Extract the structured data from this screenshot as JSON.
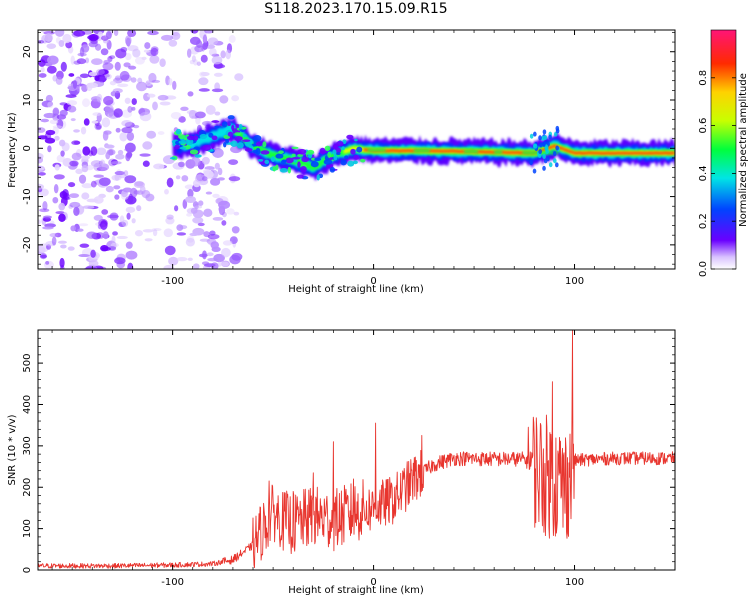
{
  "page": {
    "title": "S118.2023.170.15.09.R15"
  },
  "chart_data": [
    {
      "type": "heatmap",
      "title": "S118.2023.170.15.09.R15",
      "xlabel": "Height of straight line (km)",
      "ylabel": "Frequency (Hz)",
      "xlim": [
        -167,
        150
      ],
      "ylim": [
        -25,
        24.5
      ],
      "x_ticks": [
        -100,
        0,
        100
      ],
      "y_ticks": [
        -20,
        -10,
        0,
        10,
        20
      ],
      "colorbar": {
        "label": "Normalized spectral amplitude",
        "range": [
          0.0,
          1.0
        ],
        "ticks": [
          0.0,
          0.2,
          0.4,
          0.6,
          0.8
        ]
      },
      "ridge_center_hz": [
        {
          "x": -100,
          "y": 0.5
        },
        {
          "x": -90,
          "y": 1.0
        },
        {
          "x": -80,
          "y": 2.5
        },
        {
          "x": -70,
          "y": 4.0
        },
        {
          "x": -60,
          "y": 0.5
        },
        {
          "x": -50,
          "y": -1.5
        },
        {
          "x": -40,
          "y": -2.5
        },
        {
          "x": -30,
          "y": -4.0
        },
        {
          "x": -20,
          "y": -1.5
        },
        {
          "x": -10,
          "y": 0.0
        },
        {
          "x": 0,
          "y": -0.5
        },
        {
          "x": 20,
          "y": -0.5
        },
        {
          "x": 40,
          "y": -0.6
        },
        {
          "x": 60,
          "y": -0.8
        },
        {
          "x": 80,
          "y": -1.0
        },
        {
          "x": 90,
          "y": 0.5
        },
        {
          "x": 100,
          "y": -1.0
        },
        {
          "x": 150,
          "y": -1.0
        }
      ]
    },
    {
      "type": "line",
      "xlabel": "Height of straight line (km)",
      "ylabel": "SNR (10 * v/v)",
      "xlim": [
        -167,
        150
      ],
      "ylim": [
        0,
        580
      ],
      "x_ticks": [
        -100,
        0,
        100
      ],
      "y_ticks": [
        0,
        100,
        200,
        300,
        400,
        500
      ],
      "color": "#e8352e",
      "series": [
        {
          "values": [
            {
              "x": -167,
              "y": 10
            },
            {
              "x": -130,
              "y": 10
            },
            {
              "x": -100,
              "y": 12
            },
            {
              "x": -80,
              "y": 15
            },
            {
              "x": -70,
              "y": 25
            },
            {
              "x": -60,
              "y": 60
            },
            {
              "x": -55,
              "y": 100
            },
            {
              "x": -50,
              "y": 140
            },
            {
              "x": -45,
              "y": 120
            },
            {
              "x": -40,
              "y": 110
            },
            {
              "x": -35,
              "y": 120
            },
            {
              "x": -30,
              "y": 130
            },
            {
              "x": -20,
              "y": 120
            },
            {
              "x": -10,
              "y": 140
            },
            {
              "x": 0,
              "y": 150
            },
            {
              "x": 10,
              "y": 170
            },
            {
              "x": 20,
              "y": 220
            },
            {
              "x": 30,
              "y": 255
            },
            {
              "x": 40,
              "y": 270
            },
            {
              "x": 60,
              "y": 268
            },
            {
              "x": 75,
              "y": 268
            },
            {
              "x": 80,
              "y": 250
            },
            {
              "x": 85,
              "y": 230
            },
            {
              "x": 90,
              "y": 220
            },
            {
              "x": 95,
              "y": 200
            },
            {
              "x": 100,
              "y": 265
            },
            {
              "x": 120,
              "y": 270
            },
            {
              "x": 150,
              "y": 270
            }
          ],
          "spikes": [
            {
              "x": -52,
              "y": 215
            },
            {
              "x": -40,
              "y": 190
            },
            {
              "x": -30,
              "y": 235
            },
            {
              "x": -20,
              "y": 310
            },
            {
              "x": -10,
              "y": 220
            },
            {
              "x": 1,
              "y": 355
            },
            {
              "x": 24,
              "y": 325
            },
            {
              "x": 77,
              "y": 345
            },
            {
              "x": 89,
              "y": 455
            },
            {
              "x": 99,
              "y": 580
            }
          ]
        }
      ]
    }
  ]
}
